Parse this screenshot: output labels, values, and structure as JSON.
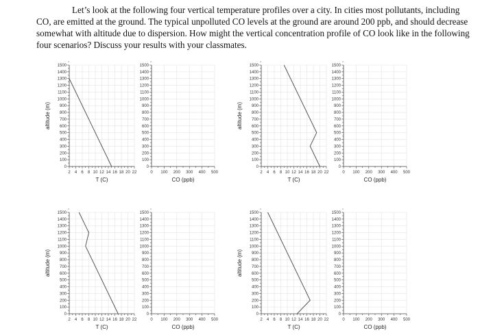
{
  "intro": {
    "text": "Let’s look at the following four vertical temperature profiles over a city. In cities most pollutants, including CO, are emitted at the ground. The typical unpolluted CO levels at the ground are around 200 ppb, and should decrease somewhat with altitude due to dispersion. How might the vertical concentration profile of CO look like in the following four scenarios? Discuss your results with your classmates."
  },
  "labels": {
    "t_xlabel": "T (C)",
    "co_xlabel": "CO (ppb)",
    "ylabel": "altitude (m)"
  },
  "axes": {
    "altitude_ticks": [
      0,
      100,
      200,
      300,
      400,
      500,
      600,
      700,
      800,
      900,
      1000,
      1100,
      1200,
      1300,
      1400,
      1500
    ],
    "t_ticks": [
      2,
      4,
      6,
      8,
      10,
      12,
      14,
      16,
      18,
      20,
      22
    ],
    "co_ticks": [
      0,
      100,
      200,
      300,
      400,
      500
    ]
  },
  "chart_data": [
    {
      "type": "line",
      "title": "Scenario 1 temperature profile",
      "xlabel": "T (C)",
      "ylabel": "altitude (m)",
      "xlim": [
        2,
        22
      ],
      "ylim": [
        0,
        1500
      ],
      "grid": true,
      "x": [
        15,
        2
      ],
      "y": [
        0,
        1300
      ]
    },
    {
      "type": "line",
      "title": "Scenario 1 CO profile (blank)",
      "xlabel": "CO (ppb)",
      "ylabel": "",
      "xlim": [
        0,
        500
      ],
      "ylim": [
        0,
        1500
      ],
      "grid": true,
      "x": [],
      "y": []
    },
    {
      "type": "line",
      "title": "Scenario 2 temperature profile",
      "xlabel": "T (C)",
      "ylabel": "altitude (m)",
      "xlim": [
        2,
        22
      ],
      "ylim": [
        0,
        1500
      ],
      "grid": true,
      "x": [
        20,
        17,
        19,
        9
      ],
      "y": [
        0,
        300,
        500,
        1500
      ]
    },
    {
      "type": "line",
      "title": "Scenario 2 CO profile (blank)",
      "xlabel": "CO (ppb)",
      "ylabel": "",
      "xlim": [
        0,
        500
      ],
      "ylim": [
        0,
        1500
      ],
      "grid": true,
      "x": [],
      "y": []
    },
    {
      "type": "line",
      "title": "Scenario 3 temperature profile",
      "xlabel": "T (C)",
      "ylabel": "altitude (m)",
      "xlim": [
        2,
        22
      ],
      "ylim": [
        0,
        1500
      ],
      "grid": true,
      "x": [
        17,
        7,
        8,
        5
      ],
      "y": [
        0,
        1000,
        1200,
        1500
      ]
    },
    {
      "type": "line",
      "title": "Scenario 3 CO profile (blank)",
      "xlabel": "CO (ppb)",
      "ylabel": "",
      "xlim": [
        0,
        500
      ],
      "ylim": [
        0,
        1500
      ],
      "grid": true,
      "x": [],
      "y": []
    },
    {
      "type": "line",
      "title": "Scenario 4 temperature profile",
      "xlabel": "T (C)",
      "ylabel": "altitude (m)",
      "xlim": [
        2,
        22
      ],
      "ylim": [
        0,
        1500
      ],
      "grid": true,
      "x": [
        13,
        17,
        4
      ],
      "y": [
        0,
        200,
        1500
      ]
    },
    {
      "type": "line",
      "title": "Scenario 4 CO profile (blank)",
      "xlabel": "CO (ppb)",
      "ylabel": "",
      "xlim": [
        0,
        500
      ],
      "ylim": [
        0,
        1500
      ],
      "grid": true,
      "x": [],
      "y": []
    }
  ]
}
